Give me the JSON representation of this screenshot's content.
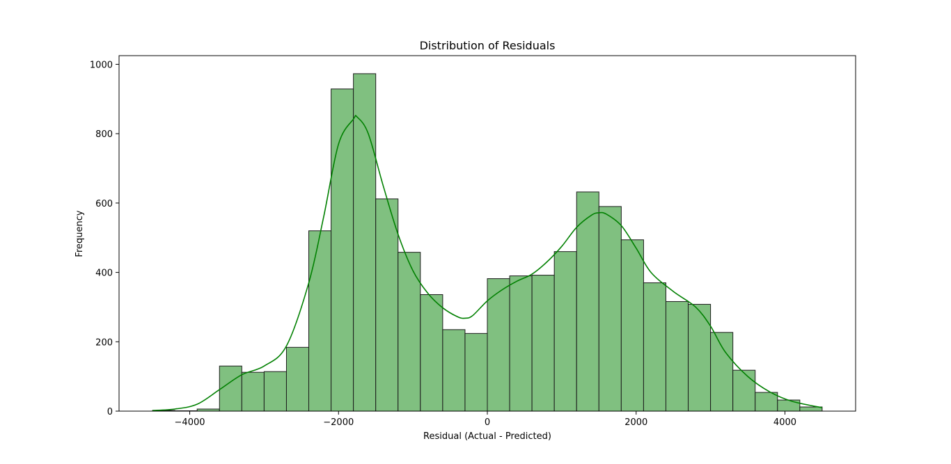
{
  "chart_data": {
    "type": "bar",
    "title": "Distribution of Residuals",
    "xlabel": "Residual (Actual - Predicted)",
    "ylabel": "Frequency",
    "xlim": [
      -4950,
      4950
    ],
    "ylim": [
      0,
      1025
    ],
    "grid": false,
    "legend": "none",
    "colors": {
      "bar_fill": "#80c080",
      "bar_edge": "#1a1a1a",
      "kde_line": "#008000"
    },
    "x_ticks": [
      {
        "value": -4000,
        "label": "−4000"
      },
      {
        "value": -2000,
        "label": "−2000"
      },
      {
        "value": 0,
        "label": "0"
      },
      {
        "value": 2000,
        "label": "2000"
      },
      {
        "value": 4000,
        "label": "4000"
      }
    ],
    "y_ticks": [
      {
        "value": 0,
        "label": "0"
      },
      {
        "value": 200,
        "label": "200"
      },
      {
        "value": 400,
        "label": "400"
      },
      {
        "value": 600,
        "label": "600"
      },
      {
        "value": 800,
        "label": "800"
      },
      {
        "value": 1000,
        "label": "1000"
      }
    ],
    "bins": [
      {
        "start": -4500,
        "end": -4200,
        "count": 2
      },
      {
        "start": -4200,
        "end": -3900,
        "count": 1
      },
      {
        "start": -3900,
        "end": -3600,
        "count": 6
      },
      {
        "start": -3600,
        "end": -3300,
        "count": 130
      },
      {
        "start": -3300,
        "end": -3000,
        "count": 112
      },
      {
        "start": -3000,
        "end": -2700,
        "count": 114
      },
      {
        "start": -2700,
        "end": -2400,
        "count": 184
      },
      {
        "start": -2400,
        "end": -2100,
        "count": 520
      },
      {
        "start": -2100,
        "end": -1800,
        "count": 929
      },
      {
        "start": -1800,
        "end": -1500,
        "count": 973
      },
      {
        "start": -1500,
        "end": -1200,
        "count": 612
      },
      {
        "start": -1200,
        "end": -900,
        "count": 458
      },
      {
        "start": -900,
        "end": -600,
        "count": 336
      },
      {
        "start": -600,
        "end": -300,
        "count": 235
      },
      {
        "start": -300,
        "end": 0,
        "count": 224
      },
      {
        "start": 0,
        "end": 300,
        "count": 382
      },
      {
        "start": 300,
        "end": 600,
        "count": 390
      },
      {
        "start": 600,
        "end": 900,
        "count": 392
      },
      {
        "start": 900,
        "end": 1200,
        "count": 460
      },
      {
        "start": 1200,
        "end": 1500,
        "count": 632
      },
      {
        "start": 1500,
        "end": 1800,
        "count": 590
      },
      {
        "start": 1800,
        "end": 2100,
        "count": 494
      },
      {
        "start": 2100,
        "end": 2400,
        "count": 370
      },
      {
        "start": 2400,
        "end": 2700,
        "count": 316
      },
      {
        "start": 2700,
        "end": 3000,
        "count": 308
      },
      {
        "start": 3000,
        "end": 3300,
        "count": 227
      },
      {
        "start": 3300,
        "end": 3600,
        "count": 118
      },
      {
        "start": 3600,
        "end": 3900,
        "count": 54
      },
      {
        "start": 3900,
        "end": 4200,
        "count": 32
      },
      {
        "start": 4200,
        "end": 4500,
        "count": 12
      }
    ],
    "kde": {
      "x": [
        -4500,
        -4200,
        -3900,
        -3600,
        -3300,
        -3000,
        -2700,
        -2400,
        -2200,
        -2000,
        -1800,
        -1750,
        -1600,
        -1400,
        -1200,
        -1000,
        -800,
        -600,
        -400,
        -300,
        -200,
        0,
        200,
        400,
        600,
        800,
        1000,
        1200,
        1400,
        1500,
        1600,
        1800,
        2000,
        2200,
        2500,
        2800,
        3000,
        3200,
        3500,
        3800,
        4100,
        4500
      ],
      "y": [
        2,
        6,
        20,
        62,
        105,
        130,
        188,
        370,
        560,
        770,
        842,
        848,
        800,
        650,
        510,
        405,
        340,
        298,
        272,
        268,
        275,
        318,
        350,
        375,
        395,
        430,
        475,
        530,
        565,
        572,
        568,
        535,
        470,
        400,
        345,
        300,
        245,
        170,
        100,
        55,
        28,
        10
      ]
    }
  }
}
